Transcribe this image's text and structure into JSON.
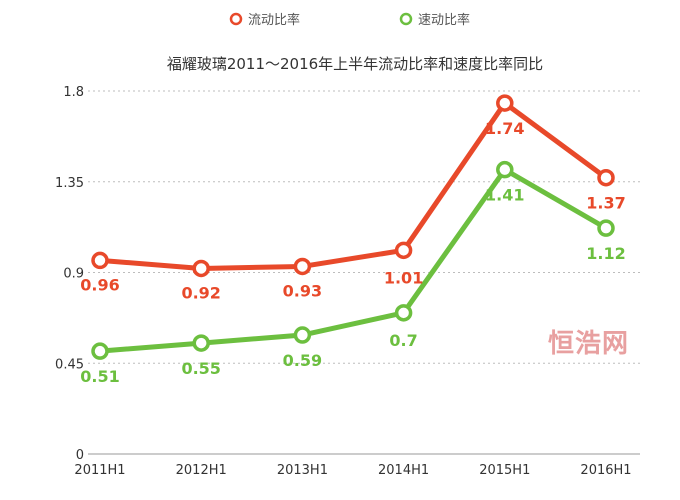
{
  "chart_data": {
    "type": "line",
    "title": "福耀玻璃2011～2016年上半年流动比率和速度比率同比",
    "categories": [
      "2011H1",
      "2012H1",
      "2013H1",
      "2014H1",
      "2015H1",
      "2016H1"
    ],
    "series": [
      {
        "name": "流动比率",
        "color": "#e8492a",
        "values": [
          0.96,
          0.92,
          0.93,
          1.01,
          1.74,
          1.37
        ],
        "labels": [
          "0.96",
          "0.92",
          "0.93",
          "1.01",
          "1.74",
          "1.37"
        ]
      },
      {
        "name": "速动比率",
        "color": "#6cbf3f",
        "values": [
          0.51,
          0.55,
          0.59,
          0.7,
          1.41,
          1.12
        ],
        "labels": [
          "0.51",
          "0.55",
          "0.59",
          "0.7",
          "1.41",
          "1.12"
        ]
      }
    ],
    "yticks": [
      0,
      0.45,
      0.9,
      1.35,
      1.8
    ],
    "ytick_labels": [
      "0",
      "0.45",
      "0.9",
      "1.35",
      "1.8"
    ],
    "ylim": [
      0,
      1.8
    ],
    "xlabel": "",
    "ylabel": "",
    "legend_position": "top-center",
    "grid": true
  },
  "watermark": "恒浩网"
}
